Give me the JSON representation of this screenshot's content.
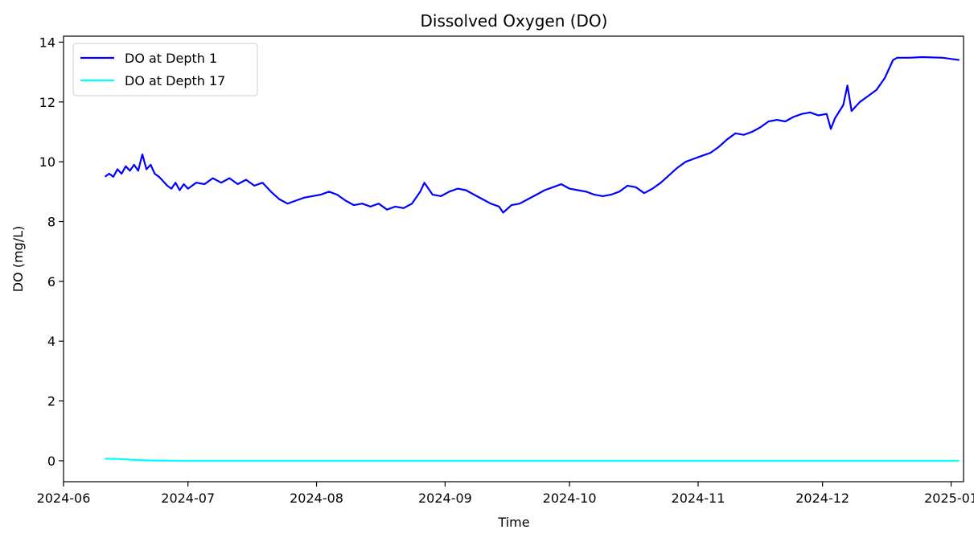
{
  "chart_data": {
    "type": "line",
    "title": "Dissolved Oxygen (DO)",
    "xlabel": "Time",
    "ylabel": "DO (mg/L)",
    "x_axis_type": "date",
    "xlim": [
      "2024-06-01",
      "2025-01-04"
    ],
    "ylim": [
      -0.7,
      14.2
    ],
    "x_ticks": [
      "2024-06",
      "2024-07",
      "2024-08",
      "2024-09",
      "2024-10",
      "2024-11",
      "2024-12",
      "2025-01"
    ],
    "y_ticks": [
      0,
      2,
      4,
      6,
      8,
      10,
      12,
      14
    ],
    "grid": false,
    "legend_position": "top-left",
    "series": [
      {
        "name": "DO at Depth 1",
        "color": "#0000ff",
        "points": [
          [
            "2024-06-11",
            9.5
          ],
          [
            "2024-06-12",
            9.6
          ],
          [
            "2024-06-13",
            9.5
          ],
          [
            "2024-06-14",
            9.75
          ],
          [
            "2024-06-15",
            9.6
          ],
          [
            "2024-06-16",
            9.85
          ],
          [
            "2024-06-17",
            9.7
          ],
          [
            "2024-06-18",
            9.9
          ],
          [
            "2024-06-19",
            9.7
          ],
          [
            "2024-06-20",
            10.25
          ],
          [
            "2024-06-21",
            9.75
          ],
          [
            "2024-06-22",
            9.9
          ],
          [
            "2024-06-23",
            9.6
          ],
          [
            "2024-06-24",
            9.5
          ],
          [
            "2024-06-25",
            9.35
          ],
          [
            "2024-06-26",
            9.2
          ],
          [
            "2024-06-27",
            9.1
          ],
          [
            "2024-06-28",
            9.3
          ],
          [
            "2024-06-29",
            9.05
          ],
          [
            "2024-06-30",
            9.25
          ],
          [
            "2024-07-01",
            9.1
          ],
          [
            "2024-07-03",
            9.3
          ],
          [
            "2024-07-05",
            9.25
          ],
          [
            "2024-07-07",
            9.45
          ],
          [
            "2024-07-09",
            9.3
          ],
          [
            "2024-07-11",
            9.45
          ],
          [
            "2024-07-13",
            9.25
          ],
          [
            "2024-07-15",
            9.4
          ],
          [
            "2024-07-17",
            9.2
          ],
          [
            "2024-07-19",
            9.3
          ],
          [
            "2024-07-21",
            9.0
          ],
          [
            "2024-07-23",
            8.75
          ],
          [
            "2024-07-25",
            8.6
          ],
          [
            "2024-07-27",
            8.7
          ],
          [
            "2024-07-29",
            8.8
          ],
          [
            "2024-07-31",
            8.85
          ],
          [
            "2024-08-02",
            8.9
          ],
          [
            "2024-08-04",
            9.0
          ],
          [
            "2024-08-06",
            8.9
          ],
          [
            "2024-08-08",
            8.7
          ],
          [
            "2024-08-10",
            8.55
          ],
          [
            "2024-08-12",
            8.6
          ],
          [
            "2024-08-14",
            8.5
          ],
          [
            "2024-08-16",
            8.6
          ],
          [
            "2024-08-18",
            8.4
          ],
          [
            "2024-08-20",
            8.5
          ],
          [
            "2024-08-22",
            8.45
          ],
          [
            "2024-08-24",
            8.6
          ],
          [
            "2024-08-26",
            9.0
          ],
          [
            "2024-08-27",
            9.3
          ],
          [
            "2024-08-29",
            8.9
          ],
          [
            "2024-08-31",
            8.85
          ],
          [
            "2024-09-02",
            9.0
          ],
          [
            "2024-09-04",
            9.1
          ],
          [
            "2024-09-06",
            9.05
          ],
          [
            "2024-09-08",
            8.9
          ],
          [
            "2024-09-10",
            8.75
          ],
          [
            "2024-09-12",
            8.6
          ],
          [
            "2024-09-14",
            8.5
          ],
          [
            "2024-09-15",
            8.3
          ],
          [
            "2024-09-17",
            8.55
          ],
          [
            "2024-09-19",
            8.6
          ],
          [
            "2024-09-21",
            8.75
          ],
          [
            "2024-09-23",
            8.9
          ],
          [
            "2024-09-25",
            9.05
          ],
          [
            "2024-09-27",
            9.15
          ],
          [
            "2024-09-29",
            9.25
          ],
          [
            "2024-10-01",
            9.1
          ],
          [
            "2024-10-03",
            9.05
          ],
          [
            "2024-10-05",
            9.0
          ],
          [
            "2024-10-07",
            8.9
          ],
          [
            "2024-10-09",
            8.85
          ],
          [
            "2024-10-11",
            8.9
          ],
          [
            "2024-10-13",
            9.0
          ],
          [
            "2024-10-15",
            9.2
          ],
          [
            "2024-10-17",
            9.15
          ],
          [
            "2024-10-19",
            8.95
          ],
          [
            "2024-10-21",
            9.1
          ],
          [
            "2024-10-23",
            9.3
          ],
          [
            "2024-10-25",
            9.55
          ],
          [
            "2024-10-27",
            9.8
          ],
          [
            "2024-10-29",
            10.0
          ],
          [
            "2024-10-31",
            10.1
          ],
          [
            "2024-11-02",
            10.2
          ],
          [
            "2024-11-04",
            10.3
          ],
          [
            "2024-11-06",
            10.5
          ],
          [
            "2024-11-08",
            10.75
          ],
          [
            "2024-11-10",
            10.95
          ],
          [
            "2024-11-12",
            10.9
          ],
          [
            "2024-11-14",
            11.0
          ],
          [
            "2024-11-16",
            11.15
          ],
          [
            "2024-11-18",
            11.35
          ],
          [
            "2024-11-20",
            11.4
          ],
          [
            "2024-11-22",
            11.35
          ],
          [
            "2024-11-24",
            11.5
          ],
          [
            "2024-11-26",
            11.6
          ],
          [
            "2024-11-28",
            11.65
          ],
          [
            "2024-11-30",
            11.55
          ],
          [
            "2024-12-02",
            11.6
          ],
          [
            "2024-12-03",
            11.1
          ],
          [
            "2024-12-04",
            11.45
          ],
          [
            "2024-12-06",
            11.9
          ],
          [
            "2024-12-07",
            12.55
          ],
          [
            "2024-12-08",
            11.7
          ],
          [
            "2024-12-10",
            12.0
          ],
          [
            "2024-12-12",
            12.2
          ],
          [
            "2024-12-14",
            12.4
          ],
          [
            "2024-12-16",
            12.8
          ],
          [
            "2024-12-17",
            13.1
          ],
          [
            "2024-12-18",
            13.4
          ],
          [
            "2024-12-19",
            13.48
          ],
          [
            "2024-12-22",
            13.48
          ],
          [
            "2024-12-25",
            13.5
          ],
          [
            "2024-12-30",
            13.48
          ],
          [
            "2025-01-03",
            13.4
          ]
        ]
      },
      {
        "name": "DO at Depth 17",
        "color": "#00ffff",
        "points": [
          [
            "2024-06-11",
            0.07
          ],
          [
            "2024-06-14",
            0.06
          ],
          [
            "2024-06-18",
            0.03
          ],
          [
            "2024-06-22",
            0.01
          ],
          [
            "2024-06-28",
            0.0
          ],
          [
            "2024-08-01",
            0.0
          ],
          [
            "2024-10-01",
            0.0
          ],
          [
            "2024-12-01",
            0.0
          ],
          [
            "2025-01-03",
            0.0
          ]
        ]
      }
    ]
  }
}
